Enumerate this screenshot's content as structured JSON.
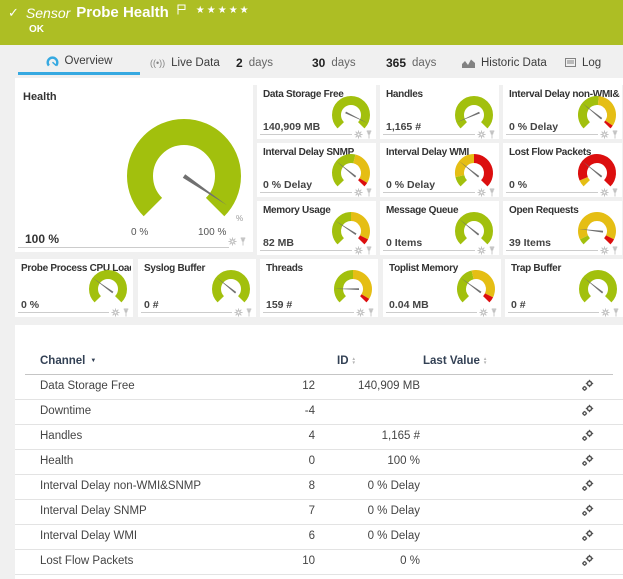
{
  "colors": {
    "banner_green": "#adbe24",
    "gauge_green": "#a2c00d",
    "gauge_yellow": "#e5be14",
    "gauge_red": "#dc0e0e",
    "accent_blue": "#36a9e1"
  },
  "header": {
    "check": "✓",
    "type_label": "Sensor",
    "title": "Probe Health",
    "stars": "★★★★★",
    "status": "OK"
  },
  "tabs": {
    "overview": "Overview",
    "live_data": "Live Data",
    "d2_num": "2",
    "d2_label": "days",
    "d30_num": "30",
    "d30_label": "days",
    "d365_num": "365",
    "d365_label": "days",
    "historic": "Historic Data",
    "log": "Log"
  },
  "health": {
    "title": "Health",
    "value": "100 %",
    "min_label": "0 %",
    "max_label": "100 %",
    "unit": "%",
    "needle": 0.96,
    "segments": [
      [
        0,
        1,
        "green"
      ]
    ]
  },
  "small_gauges": [
    {
      "title": "Data Storage Free",
      "value": "140,909 MB",
      "needle": 0.93,
      "segments": [
        [
          0,
          1,
          "green"
        ]
      ]
    },
    {
      "title": "Handles",
      "value": "1,165 #",
      "needle": 0.08,
      "segments": [
        [
          0,
          1,
          "green"
        ]
      ]
    },
    {
      "title": "Interval Delay non-WMI&SNMP",
      "value": "0 % Delay",
      "needle": 0.31,
      "segments": [
        [
          0,
          0.52,
          "green"
        ],
        [
          0.52,
          0.96,
          "yellow"
        ],
        [
          0.96,
          1,
          "red"
        ]
      ]
    },
    {
      "title": "Interval Delay SNMP",
      "value": "0 % Delay",
      "needle": 0.31,
      "segments": [
        [
          0,
          0.55,
          "green"
        ],
        [
          0.55,
          0.95,
          "yellow"
        ],
        [
          0.95,
          1,
          "red"
        ]
      ]
    },
    {
      "title": "Interval Delay WMI",
      "value": "0 % Delay",
      "needle": 0.31,
      "segments": [
        [
          0,
          0.12,
          "green"
        ],
        [
          0.12,
          0.5,
          "yellow"
        ],
        [
          0.5,
          1,
          "red"
        ]
      ]
    },
    {
      "title": "Lost Flow Packets",
      "value": "0 %",
      "needle": 0.31,
      "segments": [
        [
          0,
          0.08,
          "yellow"
        ],
        [
          0.08,
          1,
          "red"
        ]
      ]
    },
    {
      "title": "Memory Usage",
      "value": "82 MB",
      "needle": 0.29,
      "segments": [
        [
          0,
          0.5,
          "green"
        ],
        [
          0.5,
          0.93,
          "yellow"
        ],
        [
          0.93,
          1,
          "red"
        ]
      ]
    },
    {
      "title": "Message Queue",
      "value": "0 Items",
      "needle": 0.31,
      "segments": [
        [
          0,
          1,
          "green"
        ]
      ]
    },
    {
      "title": "Open Requests",
      "value": "39 Items",
      "needle": 0.19,
      "segments": [
        [
          0,
          0.07,
          "green"
        ],
        [
          0.07,
          0.93,
          "yellow"
        ],
        [
          0.93,
          1,
          "red"
        ]
      ]
    }
  ],
  "bottom_gauges": [
    {
      "title": "Probe Process CPU Load",
      "value": "0 %",
      "needle": 0.3,
      "segments": [
        [
          0,
          1,
          "green"
        ]
      ]
    },
    {
      "title": "Syslog Buffer",
      "value": "0 #",
      "needle": 0.31,
      "segments": [
        [
          0,
          1,
          "green"
        ]
      ]
    },
    {
      "title": "Threads",
      "value": "159 #",
      "needle": 0.17,
      "segments": [
        [
          0,
          0.5,
          "green"
        ],
        [
          0.5,
          0.95,
          "yellow"
        ],
        [
          0.95,
          1,
          "red"
        ]
      ]
    },
    {
      "title": "Toplist Memory",
      "value": "0.04 MB",
      "needle": 0.3,
      "segments": [
        [
          0,
          0.45,
          "green"
        ],
        [
          0.45,
          0.93,
          "yellow"
        ],
        [
          0.93,
          1,
          "red"
        ]
      ]
    },
    {
      "title": "Trap Buffer",
      "value": "0 #",
      "needle": 0.31,
      "segments": [
        [
          0,
          1,
          "green"
        ]
      ]
    }
  ],
  "table": {
    "col_channel": "Channel",
    "col_id": "ID",
    "col_value": "Last Value",
    "rows": [
      {
        "channel": "Data Storage Free",
        "id": "12",
        "value": "140,909 MB"
      },
      {
        "channel": "Downtime",
        "id": "-4",
        "value": ""
      },
      {
        "channel": "Handles",
        "id": "4",
        "value": "1,165 #"
      },
      {
        "channel": "Health",
        "id": "0",
        "value": "100 %"
      },
      {
        "channel": "Interval Delay non-WMI&SNMP",
        "id": "8",
        "value": "0 % Delay"
      },
      {
        "channel": "Interval Delay SNMP",
        "id": "7",
        "value": "0 % Delay"
      },
      {
        "channel": "Interval Delay WMI",
        "id": "6",
        "value": "0 % Delay"
      },
      {
        "channel": "Lost Flow Packets",
        "id": "10",
        "value": "0 %"
      }
    ]
  }
}
